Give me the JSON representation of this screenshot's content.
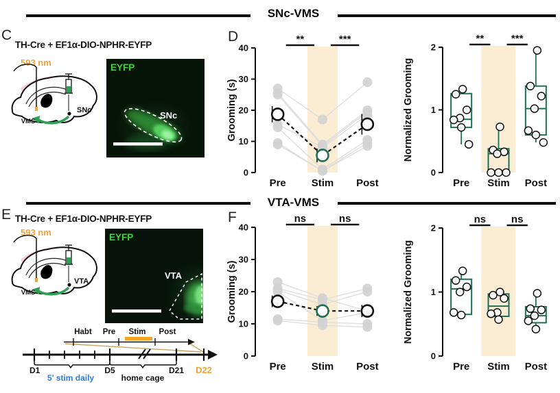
{
  "sections": [
    {
      "title": "SNc-VMS"
    },
    {
      "title": "VTA-VMS"
    }
  ],
  "colors": {
    "accent_orange": "#F0A43C",
    "stim_band": "#FAEDD3",
    "box_green": "#1E6F54",
    "gray_point": "#D2D2D2",
    "blue_text": "#2E7CD6",
    "eyfp_green": "#3FD43F",
    "arrow_green": "#2FA156",
    "pink_shade": "#F7C6D9"
  },
  "panels": {
    "c": {
      "letter": "C",
      "construct": "TH-Cre + EF1α-DIO-NPHR-EYFP",
      "wavelength": "593 nm",
      "schematic": {
        "site_label": "VMS",
        "target_label": "SNc"
      },
      "image": {
        "tag": "EYFP",
        "region": "SNc"
      }
    },
    "d": {
      "letter": "D"
    },
    "e": {
      "letter": "E",
      "construct": "TH-Cre + EF1α-DIO-NPHR-EYFP",
      "wavelength": "593 nm",
      "schematic": {
        "site_label": "VMS",
        "target_label": "VTA"
      },
      "image": {
        "tag": "EYFP",
        "region": "VTA"
      },
      "timeline": {
        "phases": [
          {
            "label": "Habt"
          },
          {
            "label": "Pre"
          },
          {
            "label": "Stim",
            "highlight": true
          },
          {
            "label": "Post"
          }
        ],
        "day_labels": [
          "D1",
          "D5",
          "D21",
          "D22"
        ],
        "stim_daily_label": "5' stim daily",
        "home_cage_label": "home cage"
      }
    },
    "f": {
      "letter": "F"
    }
  },
  "chart_data": [
    {
      "id": "d-grooming",
      "group": "SNc-VMS",
      "type": "scatter-line",
      "ylabel": "Grooming (s)",
      "categories": [
        "Pre",
        "Stim",
        "Post"
      ],
      "ylim": [
        0,
        40
      ],
      "yticks": [
        0,
        10,
        20,
        30,
        40
      ],
      "highlight_category": "Stim",
      "individual": [
        [
          27,
          17,
          29
        ],
        [
          25.5,
          9,
          20
        ],
        [
          25,
          8.5,
          19.5
        ],
        [
          15.5,
          8,
          18.5
        ],
        [
          14.5,
          1,
          10.5
        ],
        [
          9.5,
          0.5,
          9.5
        ],
        [
          9,
          0.5,
          8.5
        ]
      ],
      "mean": [
        18.7,
        5.5,
        15.5
      ],
      "sem": [
        2.6,
        2.2,
        3.3
      ],
      "sig": [
        {
          "a": "Pre",
          "b": "Stim",
          "label": "**"
        },
        {
          "a": "Stim",
          "b": "Post",
          "label": "***"
        }
      ]
    },
    {
      "id": "d-norm",
      "group": "SNc-VMS",
      "type": "box",
      "ylabel": "Normalized Grooming",
      "categories": [
        "Pre",
        "Stim",
        "Post"
      ],
      "ylim": [
        0,
        2
      ],
      "yticks": [
        0,
        1,
        2
      ],
      "highlight_category": "Stim",
      "boxes": [
        {
          "lo": 0.45,
          "q1": 0.72,
          "median": 0.85,
          "q3": 1.26,
          "hi": 1.33,
          "points": [
            1.33,
            1.25,
            1.0,
            0.87,
            0.84,
            0.72,
            0.45
          ]
        },
        {
          "lo": 0,
          "q1": 0,
          "median": 0.3,
          "q3": 0.38,
          "hi": 0.73,
          "points": [
            0.73,
            0.36,
            0.33,
            0.3,
            0,
            0,
            0
          ]
        },
        {
          "lo": 0.48,
          "q1": 0.6,
          "median": 1.02,
          "q3": 1.38,
          "hi": 1.95,
          "points": [
            1.95,
            1.38,
            1.22,
            1.02,
            0.67,
            0.6,
            0.48
          ]
        }
      ],
      "sig": [
        {
          "a": "Pre",
          "b": "Stim",
          "label": "**"
        },
        {
          "a": "Stim",
          "b": "Post",
          "label": "***"
        }
      ]
    },
    {
      "id": "f-grooming",
      "group": "VTA-VMS",
      "type": "scatter-line",
      "ylabel": "Grooming (s)",
      "categories": [
        "Pre",
        "Stim",
        "Post"
      ],
      "ylim": [
        0,
        40
      ],
      "yticks": [
        0,
        10,
        20,
        30,
        40
      ],
      "highlight_category": "Stim",
      "individual": [
        [
          23,
          18,
          14
        ],
        [
          21,
          17.5,
          21
        ],
        [
          20.5,
          16,
          20
        ],
        [
          20,
          11,
          13.5
        ],
        [
          11.5,
          10.5,
          10
        ],
        [
          11,
          9.5,
          9
        ]
      ],
      "mean": [
        17,
        14,
        14
      ],
      "sem": [
        1.8,
        1.5,
        1.9
      ],
      "sig": [
        {
          "a": "Pre",
          "b": "Stim",
          "label": "ns"
        },
        {
          "a": "Stim",
          "b": "Post",
          "label": "ns"
        }
      ]
    },
    {
      "id": "f-norm",
      "group": "VTA-VMS",
      "type": "box",
      "ylabel": "Normalized Grooming",
      "categories": [
        "Pre",
        "Stim",
        "Post"
      ],
      "ylim": [
        0,
        2
      ],
      "yticks": [
        0,
        1,
        2
      ],
      "highlight_category": "Stim",
      "boxes": [
        {
          "lo": 0.64,
          "q1": 0.65,
          "median": 1.05,
          "q3": 1.2,
          "hi": 1.33,
          "points": [
            1.33,
            1.18,
            1.08,
            1.0,
            0.68,
            0.64
          ]
        },
        {
          "lo": 0.57,
          "q1": 0.62,
          "median": 0.78,
          "q3": 0.97,
          "hi": 1.0,
          "points": [
            1.0,
            0.95,
            0.9,
            0.68,
            0.66,
            0.57
          ]
        },
        {
          "lo": 0.42,
          "q1": 0.52,
          "median": 0.63,
          "q3": 0.77,
          "hi": 0.98,
          "points": [
            0.98,
            0.74,
            0.72,
            0.63,
            0.55,
            0.42
          ]
        }
      ],
      "sig": [
        {
          "a": "Pre",
          "b": "Stim",
          "label": "ns"
        },
        {
          "a": "Stim",
          "b": "Post",
          "label": "ns"
        }
      ]
    }
  ]
}
